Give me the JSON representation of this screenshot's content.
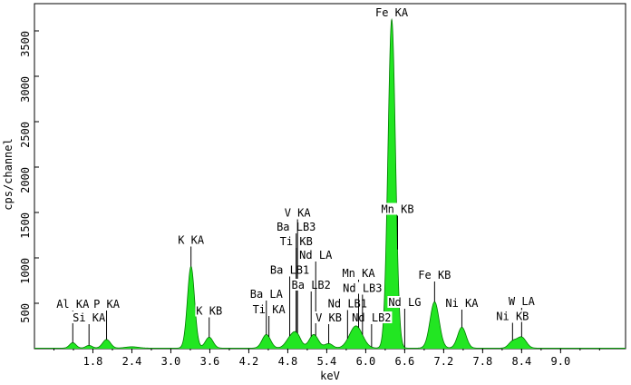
{
  "chart_data": {
    "type": "area",
    "xlabel": "keV",
    "ylabel": "cps/channel",
    "xlim": [
      0.9,
      10.0
    ],
    "ylim": [
      0,
      3800
    ],
    "x_ticks": [
      "1.8",
      "2.4",
      "3.0",
      "3.6",
      "4.2",
      "4.8",
      "5.4",
      "6.0",
      "6.6",
      "7.2",
      "7.8",
      "8.4",
      "9.0"
    ],
    "y_ticks": [
      "500",
      "1000",
      "1500",
      "2000",
      "2500",
      "3000",
      "3500"
    ],
    "fill_color": "#22e622",
    "line_color": "#007a00",
    "peaks": [
      {
        "x": 1.49,
        "y": 60,
        "w": 0.05
      },
      {
        "x": 1.74,
        "y": 30,
        "w": 0.05
      },
      {
        "x": 2.01,
        "y": 95,
        "w": 0.06
      },
      {
        "x": 2.4,
        "y": 15,
        "w": 0.1
      },
      {
        "x": 3.31,
        "y": 900,
        "w": 0.055
      },
      {
        "x": 3.59,
        "y": 120,
        "w": 0.06
      },
      {
        "x": 4.47,
        "y": 150,
        "w": 0.065
      },
      {
        "x": 4.86,
        "y": 130,
        "w": 0.08
      },
      {
        "x": 4.95,
        "y": 95,
        "w": 0.06
      },
      {
        "x": 5.2,
        "y": 150,
        "w": 0.07
      },
      {
        "x": 5.43,
        "y": 50,
        "w": 0.06
      },
      {
        "x": 5.85,
        "y": 245,
        "w": 0.1
      },
      {
        "x": 6.4,
        "y": 3620,
        "w": 0.058
      },
      {
        "x": 7.06,
        "y": 510,
        "w": 0.07
      },
      {
        "x": 7.48,
        "y": 230,
        "w": 0.065
      },
      {
        "x": 8.26,
        "y": 70,
        "w": 0.06
      },
      {
        "x": 8.4,
        "y": 120,
        "w": 0.07
      }
    ],
    "annotations": [
      {
        "label": "Al KA",
        "x": 1.49,
        "y": 450
      },
      {
        "label": "Si KA",
        "x": 1.74,
        "y": 300
      },
      {
        "label": "P KA",
        "x": 2.01,
        "y": 450
      },
      {
        "label": "K KA",
        "x": 3.31,
        "y": 1155
      },
      {
        "label": "K KB",
        "x": 3.59,
        "y": 375
      },
      {
        "label": "Ti KA",
        "x": 4.51,
        "y": 390
      },
      {
        "label": "Ba LA",
        "x": 4.47,
        "y": 560
      },
      {
        "label": "Ba LB1",
        "x": 4.83,
        "y": 825
      },
      {
        "label": "Ti KB",
        "x": 4.93,
        "y": 1140
      },
      {
        "label": "Ba LB3",
        "x": 4.93,
        "y": 1300
      },
      {
        "label": "V KA",
        "x": 4.95,
        "y": 1455
      },
      {
        "label": "Ba LB2",
        "x": 5.16,
        "y": 660
      },
      {
        "label": "Nd LA",
        "x": 5.23,
        "y": 990
      },
      {
        "label": "V KB",
        "x": 5.43,
        "y": 300
      },
      {
        "label": "Nd LB1",
        "x": 5.72,
        "y": 455
      },
      {
        "label": "Nd LB2",
        "x": 6.09,
        "y": 300
      },
      {
        "label": "Mn KA",
        "x": 5.89,
        "y": 790
      },
      {
        "label": "Nd LB3",
        "x": 5.95,
        "y": 625
      },
      {
        "label": "Mn KB",
        "x": 6.49,
        "y": 1495
      },
      {
        "label": "Nd LG",
        "x": 6.6,
        "y": 470
      },
      {
        "label": "Fe KA",
        "x": 6.4,
        "y": 3660
      },
      {
        "label": "Fe KB",
        "x": 7.06,
        "y": 770
      },
      {
        "label": "Ni KA",
        "x": 7.48,
        "y": 460
      },
      {
        "label": "W LA",
        "x": 8.4,
        "y": 480
      },
      {
        "label": "Ni KB",
        "x": 8.26,
        "y": 315
      }
    ]
  }
}
